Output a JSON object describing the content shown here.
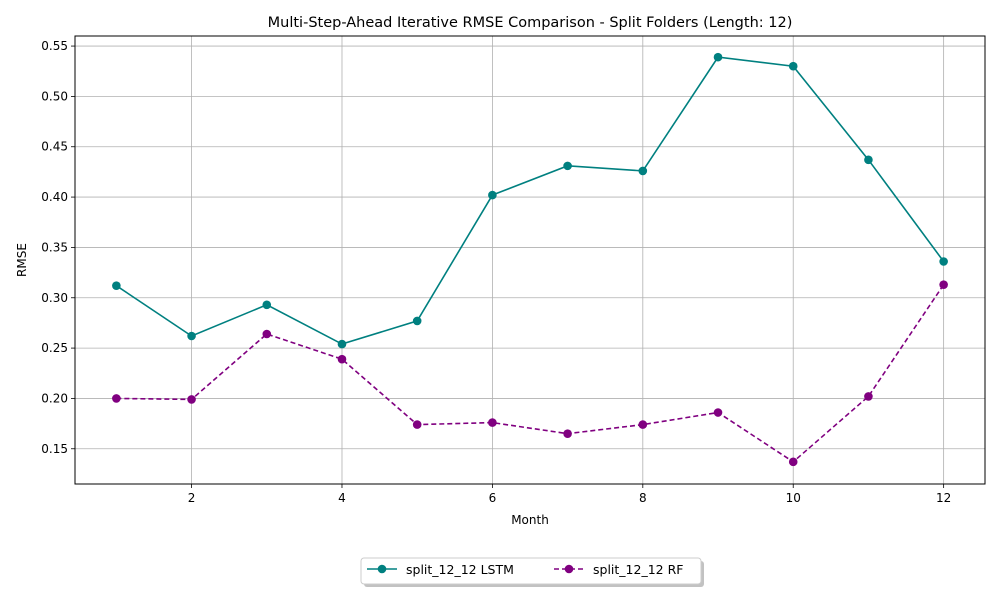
{
  "chart_data": {
    "type": "line",
    "title": "Multi-Step-Ahead Iterative RMSE Comparison - Split Folders (Length: 12)",
    "xlabel": "Month",
    "ylabel": "RMSE",
    "xlim": [
      0.45,
      12.55
    ],
    "ylim": [
      0.115,
      0.56
    ],
    "xticks": [
      2,
      4,
      6,
      8,
      10,
      12
    ],
    "yticks": [
      0.15,
      0.2,
      0.25,
      0.3,
      0.35,
      0.4,
      0.45,
      0.5,
      0.55
    ],
    "grid": true,
    "legend_position": "bottom-center, below plot",
    "x": [
      1,
      2,
      3,
      4,
      5,
      6,
      7,
      8,
      9,
      10,
      11,
      12
    ],
    "series": [
      {
        "name": "split_12_12 LSTM",
        "color": "#008080",
        "line_style": "solid",
        "marker": "circle",
        "values": [
          0.312,
          0.262,
          0.293,
          0.254,
          0.277,
          0.402,
          0.431,
          0.426,
          0.539,
          0.53,
          0.437,
          0.336
        ]
      },
      {
        "name": "split_12_12 RF",
        "color": "#800080",
        "line_style": "dashed",
        "marker": "circle",
        "values": [
          0.2,
          0.199,
          0.264,
          0.239,
          0.174,
          0.176,
          0.165,
          0.174,
          0.186,
          0.137,
          0.202,
          0.313
        ]
      }
    ]
  }
}
